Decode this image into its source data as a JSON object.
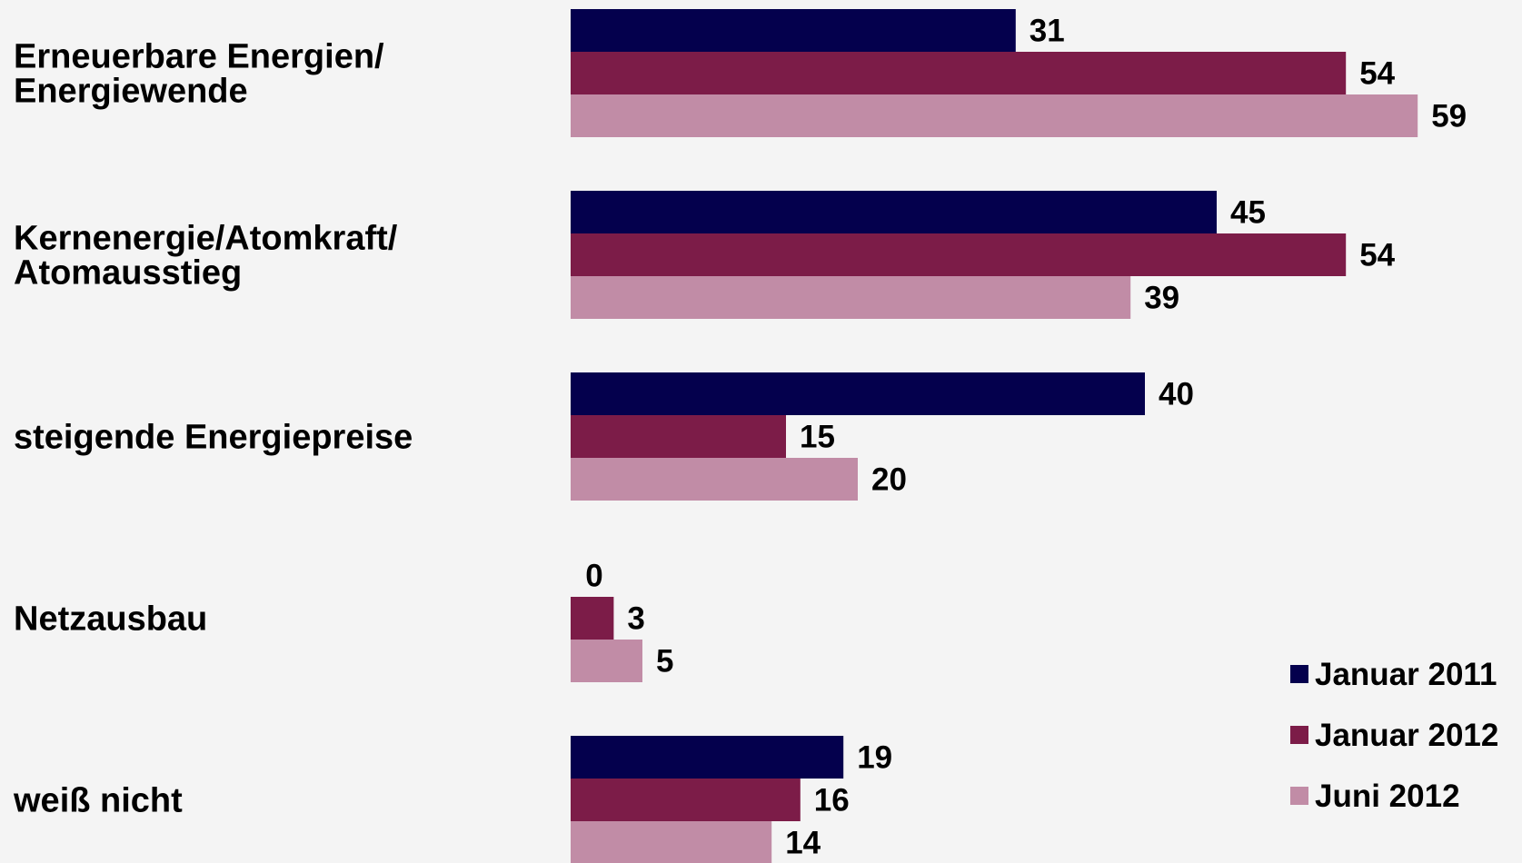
{
  "chart_data": {
    "type": "bar",
    "orientation": "horizontal",
    "categories": [
      [
        "Erneuerbare Energien/",
        "Energiewende"
      ],
      [
        "Kernenergie/Atomkraft/",
        "Atomausstieg"
      ],
      [
        "steigende Energiepreise"
      ],
      [
        "Netzausbau"
      ],
      [
        "weiß nicht"
      ]
    ],
    "series": [
      {
        "name": "Januar 2011",
        "color": "#04004d",
        "values": [
          31,
          45,
          40,
          0,
          19
        ]
      },
      {
        "name": "Januar 2012",
        "color": "#7c1c48",
        "values": [
          54,
          54,
          15,
          3,
          16
        ]
      },
      {
        "name": "Juni 2012",
        "color": "#c18ca6",
        "values": [
          59,
          39,
          20,
          5,
          14
        ]
      }
    ],
    "title": "",
    "xlabel": "",
    "ylabel": "",
    "xlim": [
      0,
      70
    ],
    "grid": false,
    "legend": "bottom-right",
    "data_labels": true
  }
}
